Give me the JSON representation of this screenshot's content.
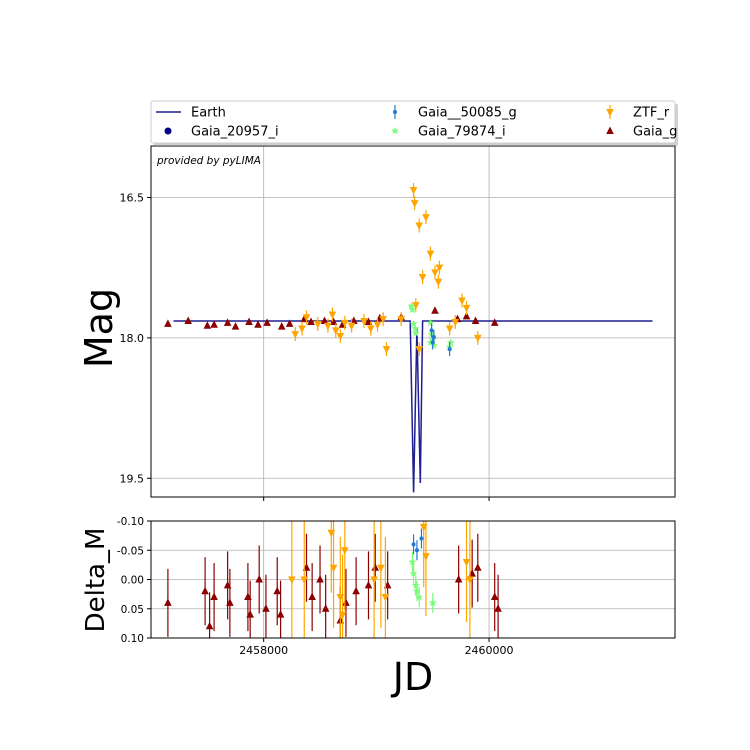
{
  "chart_data": [
    {
      "type": "scatter",
      "panel": "main",
      "ylabel": "Mag",
      "annotation": "provided by pyLIMA",
      "xlim": [
        2457000,
        2461650
      ],
      "ylim": [
        19.7,
        15.95
      ],
      "y_inverted": true,
      "yticks": [
        16.5,
        18.0,
        19.5
      ],
      "ytick_labels": [
        "16.5",
        "18.0",
        "19.5"
      ],
      "xticks": [
        2458000,
        2460000
      ],
      "grid": true,
      "legend": {
        "placement": "top-outside",
        "columns": 3,
        "entries": [
          {
            "label": "Earth",
            "marker": "line",
            "color": "#1f1f8f"
          },
          {
            "label": "Gaia_20957_i",
            "marker": "circle",
            "color": "#00008b"
          },
          {
            "label": "Gaia__50085_g",
            "marker": "dot",
            "color": "#1e7bd4"
          },
          {
            "label": "Gaia_79874_i",
            "marker": "star",
            "color": "#7cfc7c"
          },
          {
            "label": "ZTF_r",
            "marker": "triangle-down",
            "color": "#ffa500"
          },
          {
            "label": "Gaia_g",
            "marker": "triangle-up",
            "color": "#8b0000"
          }
        ]
      },
      "model_line": {
        "name": "Earth",
        "baseline": 17.82,
        "x_start": 2457200,
        "x_end": 2461450,
        "spike_x": [
          2459300,
          2459330,
          2459360,
          2459390
        ],
        "spike_y": [
          17.82,
          19.65,
          17.9,
          19.55
        ]
      },
      "series": [
        {
          "name": "Gaia_g",
          "marker": "triangle-up",
          "points": [
            [
              2457150,
              17.85
            ],
            [
              2457330,
              17.82
            ],
            [
              2457500,
              17.87
            ],
            [
              2457560,
              17.86
            ],
            [
              2457680,
              17.84
            ],
            [
              2457750,
              17.88
            ],
            [
              2457870,
              17.83
            ],
            [
              2457950,
              17.86
            ],
            [
              2458030,
              17.84
            ],
            [
              2458160,
              17.88
            ],
            [
              2458230,
              17.85
            ],
            [
              2458360,
              17.8
            ],
            [
              2458420,
              17.83
            ],
            [
              2458540,
              17.82
            ],
            [
              2458620,
              17.83
            ],
            [
              2458700,
              17.86
            ],
            [
              2458800,
              17.82
            ],
            [
              2458930,
              17.83
            ],
            [
              2459030,
              17.79
            ],
            [
              2459220,
              17.78
            ],
            [
              2459520,
              17.71
            ],
            [
              2459720,
              17.8
            ],
            [
              2459800,
              17.77
            ],
            [
              2459880,
              17.82
            ],
            [
              2460050,
              17.84
            ]
          ]
        },
        {
          "name": "ZTF_r",
          "marker": "triangle-down",
          "points": [
            [
              2458280,
              17.96
            ],
            [
              2458340,
              17.9
            ],
            [
              2458380,
              17.78
            ],
            [
              2458480,
              17.85
            ],
            [
              2458570,
              17.87
            ],
            [
              2458610,
              17.75
            ],
            [
              2458640,
              17.92
            ],
            [
              2458680,
              17.98
            ],
            [
              2458720,
              17.84
            ],
            [
              2458780,
              17.87
            ],
            [
              2458890,
              17.82
            ],
            [
              2458950,
              17.9
            ],
            [
              2459010,
              17.86
            ],
            [
              2459060,
              17.8
            ],
            [
              2459090,
              18.12
            ],
            [
              2459220,
              17.8
            ],
            [
              2459330,
              16.42
            ],
            [
              2459340,
              16.56
            ],
            [
              2459350,
              17.65
            ],
            [
              2459380,
              16.8
            ],
            [
              2459410,
              17.35
            ],
            [
              2459440,
              16.71
            ],
            [
              2459480,
              17.1
            ],
            [
              2459520,
              17.3
            ],
            [
              2459560,
              17.25
            ],
            [
              2459650,
              17.9
            ],
            [
              2459700,
              17.83
            ],
            [
              2459760,
              17.6
            ],
            [
              2459800,
              17.68
            ],
            [
              2459900,
              18.0
            ],
            [
              2459380,
              18.12
            ],
            [
              2459550,
              17.4
            ]
          ]
        },
        {
          "name": "Gaia_79874_i",
          "marker": "star",
          "points": [
            [
              2459310,
              17.66
            ],
            [
              2459320,
              17.7
            ],
            [
              2459330,
              17.85
            ],
            [
              2459345,
              17.9
            ],
            [
              2459350,
              17.95
            ],
            [
              2459490,
              17.96
            ],
            [
              2459500,
              18.02
            ],
            [
              2459480,
              18.05
            ],
            [
              2459510,
              18.08
            ],
            [
              2459480,
              17.84
            ],
            [
              2459650,
              18.1
            ],
            [
              2459660,
              18.05
            ]
          ]
        },
        {
          "name": "Gaia__50085_g",
          "marker": "dot",
          "points": [
            [
              2459490,
              17.92
            ],
            [
              2459510,
              17.99
            ],
            [
              2459500,
              18.05
            ],
            [
              2459650,
              18.12
            ]
          ]
        }
      ]
    },
    {
      "type": "scatter",
      "panel": "residuals",
      "xlabel": "JD",
      "ylabel": "Delta_M",
      "xlim": [
        2457000,
        2461650
      ],
      "ylim": [
        0.1,
        -0.1
      ],
      "y_inverted": true,
      "yticks": [
        -0.1,
        -0.05,
        0.0,
        0.05,
        0.1
      ],
      "ytick_labels": [
        "-0.10",
        "-0.05",
        "0.00",
        "0.05",
        "0.10"
      ],
      "xticks": [
        2458000,
        2460000
      ],
      "xtick_labels": [
        "2458000",
        "2460000"
      ],
      "grid": true,
      "series": [
        {
          "name": "Gaia_g",
          "marker": "triangle-up",
          "points": [
            [
              2457150,
              0.04
            ],
            [
              2457480,
              0.02
            ],
            [
              2457520,
              0.08
            ],
            [
              2457560,
              0.03
            ],
            [
              2457680,
              0.01
            ],
            [
              2457700,
              0.04
            ],
            [
              2457860,
              0.03
            ],
            [
              2457880,
              0.06
            ],
            [
              2457960,
              0.0
            ],
            [
              2458020,
              0.05
            ],
            [
              2458120,
              0.02
            ],
            [
              2458150,
              0.06
            ],
            [
              2458380,
              -0.02
            ],
            [
              2458430,
              0.03
            ],
            [
              2458500,
              0.0
            ],
            [
              2458550,
              0.05
            ],
            [
              2458680,
              0.07
            ],
            [
              2458730,
              0.04
            ],
            [
              2458820,
              0.02
            ],
            [
              2458930,
              0.01
            ],
            [
              2458990,
              -0.02
            ],
            [
              2459100,
              0.01
            ],
            [
              2459730,
              0.0
            ],
            [
              2459850,
              -0.01
            ],
            [
              2459900,
              -0.02
            ],
            [
              2460050,
              0.03
            ],
            [
              2460080,
              0.05
            ]
          ]
        },
        {
          "name": "ZTF_r",
          "marker": "triangle-down",
          "points": [
            [
              2458250,
              0.0
            ],
            [
              2458360,
              0.0
            ],
            [
              2458600,
              -0.08
            ],
            [
              2458620,
              -0.02
            ],
            [
              2458680,
              0.03
            ],
            [
              2458700,
              0.06
            ],
            [
              2458720,
              -0.05
            ],
            [
              2458980,
              0.0
            ],
            [
              2459040,
              -0.02
            ],
            [
              2459080,
              0.03
            ],
            [
              2459420,
              -0.09
            ],
            [
              2459440,
              -0.04
            ],
            [
              2459800,
              -0.03
            ],
            [
              2459830,
              0.0
            ]
          ]
        },
        {
          "name": "Gaia_79874_i",
          "marker": "star",
          "points": [
            [
              2459320,
              -0.03
            ],
            [
              2459330,
              -0.01
            ],
            [
              2459360,
              0.02
            ],
            [
              2459380,
              0.03
            ],
            [
              2459500,
              0.04
            ],
            [
              2459350,
              0.01
            ]
          ]
        },
        {
          "name": "Gaia__50085_g",
          "marker": "dot",
          "points": [
            [
              2459330,
              -0.06
            ],
            [
              2459360,
              -0.05
            ],
            [
              2459400,
              -0.07
            ]
          ]
        }
      ]
    }
  ],
  "colors": {
    "Earth": "#1f1f8f",
    "Gaia_20957_i": "#00008b",
    "Gaia__50085_g": "#1e7bd4",
    "Gaia_79874_i": "#7cfc7c",
    "ZTF_r": "#ffa500",
    "Gaia_g": "#8b0000",
    "grid": "#b0b0b0"
  }
}
